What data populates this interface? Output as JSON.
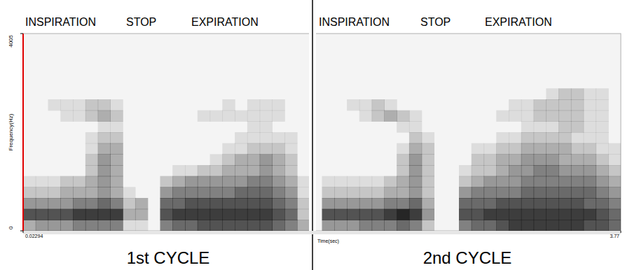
{
  "chart_data": {
    "type": "heatmap",
    "annotations": [
      "INSPIRATION",
      "STOP",
      "EXPIRATION",
      "INSPIRATION",
      "STOP",
      "EXPIRATION"
    ],
    "panel_labels": [
      "1st CYCLE",
      "2nd CYCLE"
    ],
    "x_label": "Time(sec)",
    "y_label": "Frequency(Hz)",
    "xlim": [
      0.02294,
      3.77
    ],
    "xticks": [
      0.02294,
      3.77
    ],
    "ylim": [
      0,
      4005
    ],
    "yticks": [
      0,
      4005
    ],
    "grid": false,
    "color": "#1a1a1a",
    "zlim": [
      0,
      9
    ],
    "cells": [
      [
        3,
        4,
        4,
        4,
        5,
        5,
        5,
        5,
        1,
        1,
        0,
        5,
        6,
        6,
        7,
        7,
        7,
        7,
        7,
        7,
        6,
        5,
        3,
        0,
        4,
        4,
        4,
        5,
        5,
        5,
        6,
        5,
        2,
        0,
        0,
        5,
        6,
        6,
        7,
        8,
        8,
        8,
        8,
        8,
        8,
        7,
        7,
        6
      ],
      [
        7,
        7,
        7,
        7,
        8,
        8,
        8,
        8,
        3,
        3,
        0,
        7,
        8,
        8,
        8,
        8,
        8,
        8,
        8,
        8,
        7,
        6,
        2,
        0,
        7,
        7,
        7,
        7,
        7,
        8,
        9,
        8,
        4,
        0,
        0,
        7,
        7,
        8,
        8,
        8,
        8,
        8,
        8,
        8,
        8,
        8,
        7,
        6
      ],
      [
        4,
        4,
        4,
        4,
        5,
        5,
        6,
        5,
        2,
        3,
        0,
        6,
        6,
        7,
        7,
        7,
        7,
        7,
        7,
        7,
        6,
        5,
        2,
        0,
        4,
        4,
        4,
        4,
        4,
        5,
        5,
        6,
        3,
        0,
        0,
        6,
        6,
        6,
        7,
        7,
        7,
        7,
        7,
        7,
        7,
        6,
        6,
        5
      ],
      [
        2,
        2,
        2,
        3,
        3,
        3,
        4,
        3,
        1,
        0,
        0,
        4,
        5,
        5,
        5,
        5,
        5,
        6,
        6,
        6,
        5,
        4,
        1,
        0,
        2,
        2,
        2,
        2,
        2,
        3,
        3,
        4,
        2,
        0,
        0,
        4,
        5,
        5,
        5,
        5,
        6,
        6,
        6,
        6,
        6,
        6,
        5,
        4
      ],
      [
        1,
        1,
        1,
        2,
        2,
        3,
        4,
        3,
        0,
        0,
        0,
        2,
        3,
        4,
        4,
        4,
        4,
        4,
        5,
        5,
        4,
        3,
        1,
        0,
        1,
        1,
        1,
        1,
        1,
        2,
        3,
        4,
        2,
        0,
        0,
        2,
        3,
        4,
        4,
        4,
        5,
        5,
        5,
        5,
        5,
        5,
        4,
        3
      ],
      [
        0,
        0,
        0,
        0,
        0,
        2,
        4,
        3,
        0,
        0,
        0,
        0,
        1,
        1,
        2,
        2,
        3,
        3,
        3,
        4,
        3,
        2,
        0,
        0,
        0,
        0,
        0,
        0,
        0,
        0,
        2,
        4,
        2,
        0,
        0,
        1,
        2,
        2,
        3,
        4,
        4,
        5,
        5,
        4,
        4,
        4,
        3,
        2
      ],
      [
        0,
        0,
        0,
        0,
        0,
        2,
        4,
        3,
        0,
        0,
        0,
        0,
        0,
        0,
        0,
        1,
        2,
        3,
        3,
        4,
        3,
        2,
        0,
        0,
        0,
        0,
        0,
        0,
        0,
        0,
        2,
        4,
        2,
        0,
        0,
        0,
        2,
        2,
        3,
        3,
        4,
        4,
        4,
        3,
        3,
        3,
        2,
        1
      ],
      [
        0,
        0,
        0,
        0,
        0,
        1,
        3,
        3,
        0,
        0,
        0,
        0,
        0,
        0,
        0,
        0,
        1,
        1,
        2,
        2,
        2,
        1,
        0,
        0,
        0,
        0,
        0,
        0,
        0,
        0,
        1,
        3,
        2,
        0,
        0,
        0,
        1,
        1,
        2,
        2,
        3,
        3,
        3,
        3,
        2,
        2,
        1,
        1
      ],
      [
        0,
        0,
        0,
        0,
        0,
        1,
        2,
        2,
        0,
        0,
        0,
        0,
        0,
        0,
        0,
        0,
        0,
        1,
        1,
        1,
        1,
        1,
        0,
        0,
        0,
        0,
        0,
        0,
        0,
        0,
        0,
        2,
        1,
        0,
        0,
        0,
        0,
        0,
        1,
        1,
        2,
        2,
        2,
        2,
        1,
        1,
        1,
        0
      ],
      [
        0,
        0,
        0,
        0,
        0,
        0,
        1,
        1,
        0,
        0,
        0,
        0,
        0,
        0,
        0,
        0,
        0,
        0,
        1,
        1,
        0,
        0,
        0,
        0,
        0,
        0,
        0,
        0,
        0,
        0,
        1,
        1,
        0,
        0,
        0,
        0,
        0,
        0,
        0,
        0,
        1,
        1,
        1,
        2,
        2,
        1,
        1,
        0
      ],
      [
        0,
        0,
        0,
        1,
        1,
        2,
        3,
        2,
        0,
        0,
        0,
        0,
        0,
        0,
        1,
        1,
        1,
        1,
        1,
        1,
        1,
        0,
        0,
        0,
        0,
        0,
        0,
        1,
        2,
        3,
        2,
        1,
        0,
        0,
        0,
        0,
        0,
        0,
        1,
        1,
        1,
        2,
        2,
        2,
        2,
        1,
        1,
        0
      ],
      [
        0,
        0,
        1,
        1,
        1,
        2,
        2,
        1,
        0,
        0,
        0,
        0,
        0,
        0,
        0,
        0,
        1,
        0,
        1,
        1,
        1,
        0,
        0,
        0,
        0,
        0,
        1,
        1,
        2,
        1,
        0,
        0,
        0,
        0,
        0,
        0,
        0,
        0,
        0,
        1,
        1,
        2,
        2,
        2,
        2,
        1,
        1,
        0
      ],
      [
        0,
        0,
        0,
        0,
        0,
        0,
        0,
        0,
        0,
        0,
        0,
        0,
        0,
        0,
        0,
        0,
        0,
        0,
        0,
        0,
        0,
        0,
        0,
        0,
        0,
        0,
        0,
        0,
        0,
        0,
        0,
        0,
        0,
        0,
        0,
        0,
        0,
        0,
        0,
        0,
        0,
        0,
        1,
        2,
        2,
        1,
        1,
        0
      ],
      [
        0,
        0,
        0,
        0,
        0,
        0,
        0,
        0,
        0,
        0,
        0,
        0,
        0,
        0,
        0,
        0,
        0,
        0,
        0,
        0,
        0,
        0,
        0,
        0,
        0,
        0,
        0,
        0,
        0,
        0,
        0,
        0,
        0,
        0,
        0,
        0,
        0,
        0,
        0,
        0,
        0,
        0,
        0,
        0,
        0,
        0,
        0,
        0
      ],
      [
        0,
        0,
        0,
        0,
        0,
        0,
        0,
        0,
        0,
        0,
        0,
        0,
        0,
        0,
        0,
        0,
        0,
        0,
        0,
        0,
        0,
        0,
        0,
        0,
        0,
        0,
        0,
        0,
        0,
        0,
        0,
        0,
        0,
        0,
        0,
        0,
        0,
        0,
        0,
        0,
        0,
        0,
        0,
        0,
        0,
        0,
        0,
        0
      ],
      [
        0,
        0,
        0,
        0,
        0,
        0,
        0,
        0,
        0,
        0,
        0,
        0,
        0,
        0,
        0,
        0,
        0,
        0,
        0,
        0,
        0,
        0,
        0,
        0,
        0,
        0,
        0,
        0,
        0,
        0,
        0,
        0,
        0,
        0,
        0,
        0,
        0,
        0,
        0,
        0,
        0,
        0,
        0,
        0,
        0,
        0,
        0,
        0
      ],
      [
        0,
        0,
        0,
        0,
        0,
        0,
        0,
        0,
        0,
        0,
        0,
        0,
        0,
        0,
        0,
        0,
        0,
        0,
        0,
        0,
        0,
        0,
        0,
        0,
        0,
        0,
        0,
        0,
        0,
        0,
        0,
        0,
        0,
        0,
        0,
        0,
        0,
        0,
        0,
        0,
        0,
        0,
        0,
        0,
        0,
        0,
        0,
        0
      ],
      [
        0,
        0,
        0,
        0,
        0,
        0,
        0,
        0,
        0,
        0,
        0,
        0,
        0,
        0,
        0,
        0,
        0,
        0,
        0,
        0,
        0,
        0,
        0,
        0,
        0,
        0,
        0,
        0,
        0,
        0,
        0,
        0,
        0,
        0,
        0,
        0,
        0,
        0,
        0,
        0,
        0,
        0,
        0,
        0,
        0,
        0,
        0,
        0
      ]
    ]
  }
}
